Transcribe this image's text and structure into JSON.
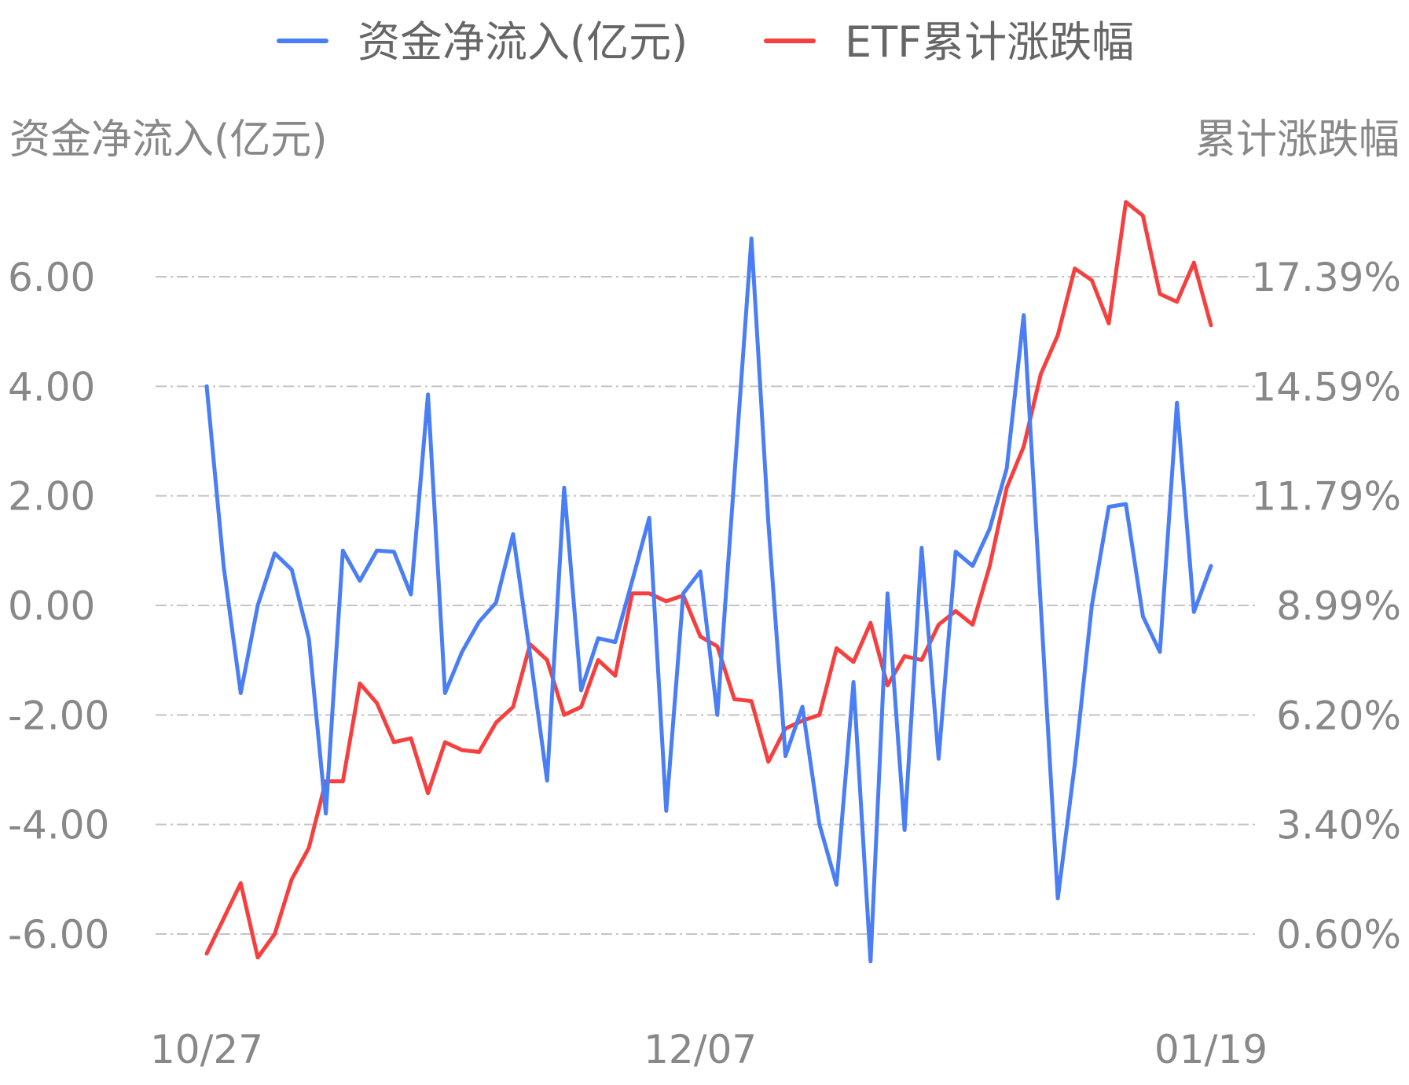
{
  "chart_data": {
    "type": "line",
    "legend_position": "top-center",
    "grid": true,
    "colors": {
      "net_inflow": "#4a7ef5",
      "cumulative_change": "#f5403f"
    },
    "left_axis": {
      "title": "资金净流入(亿元)",
      "ticks": [
        "6.00",
        "4.00",
        "2.00",
        "0.00",
        "-2.00",
        "-4.00",
        "-6.00"
      ],
      "ylim": [
        -6,
        6
      ]
    },
    "right_axis": {
      "title": "累计涨跌幅",
      "ticks": [
        "17.39%",
        "14.59%",
        "11.79%",
        "8.99%",
        "6.20%",
        "3.40%",
        "0.60%"
      ],
      "ylim": [
        0.6,
        17.39
      ]
    },
    "x_ticks": [
      "10/27",
      "12/07",
      "01/19"
    ],
    "x_tick_index": [
      0,
      29,
      59
    ],
    "series": [
      {
        "name": "资金净流入(亿元)",
        "axis": "left",
        "values": [
          4.0,
          0.7,
          -1.6,
          0.0,
          0.95,
          0.65,
          -0.6,
          -3.8,
          1.0,
          0.45,
          1.0,
          0.98,
          0.2,
          3.85,
          -1.6,
          -0.85,
          -0.3,
          0.05,
          1.3,
          -0.9,
          -3.2,
          2.15,
          -1.55,
          -0.6,
          -0.67,
          0.45,
          1.6,
          -3.75,
          0.22,
          0.62,
          -2.0,
          2.35,
          6.7,
          1.5,
          -2.75,
          -1.85,
          -4.0,
          -5.1,
          -1.4,
          -6.5,
          0.22,
          -4.1,
          1.05,
          -2.8,
          0.98,
          0.72,
          1.4,
          2.5,
          5.3,
          0.0,
          -5.35,
          -2.9,
          0.0,
          1.8,
          1.85,
          -0.2,
          -0.85,
          3.7,
          -0.12,
          0.72
        ]
      },
      {
        "name": "ETF累计涨跌幅",
        "axis": "right",
        "values": [
          0.1,
          1.0,
          1.9,
          0.0,
          0.6,
          2.0,
          2.8,
          4.5,
          4.5,
          7.0,
          6.5,
          5.5,
          5.6,
          4.2,
          5.5,
          5.3,
          5.25,
          6.0,
          6.4,
          8.0,
          7.6,
          6.2,
          6.4,
          7.6,
          7.2,
          9.3,
          9.3,
          9.1,
          9.25,
          8.2,
          7.95,
          6.6,
          6.55,
          5.0,
          5.85,
          6.05,
          6.2,
          7.9,
          7.55,
          8.55,
          6.95,
          7.7,
          7.6,
          8.5,
          8.85,
          8.5,
          10.0,
          12.0,
          13.05,
          14.9,
          15.9,
          17.6,
          17.3,
          16.2,
          19.3,
          18.95,
          16.95,
          16.75,
          17.75,
          16.15
        ]
      }
    ]
  }
}
